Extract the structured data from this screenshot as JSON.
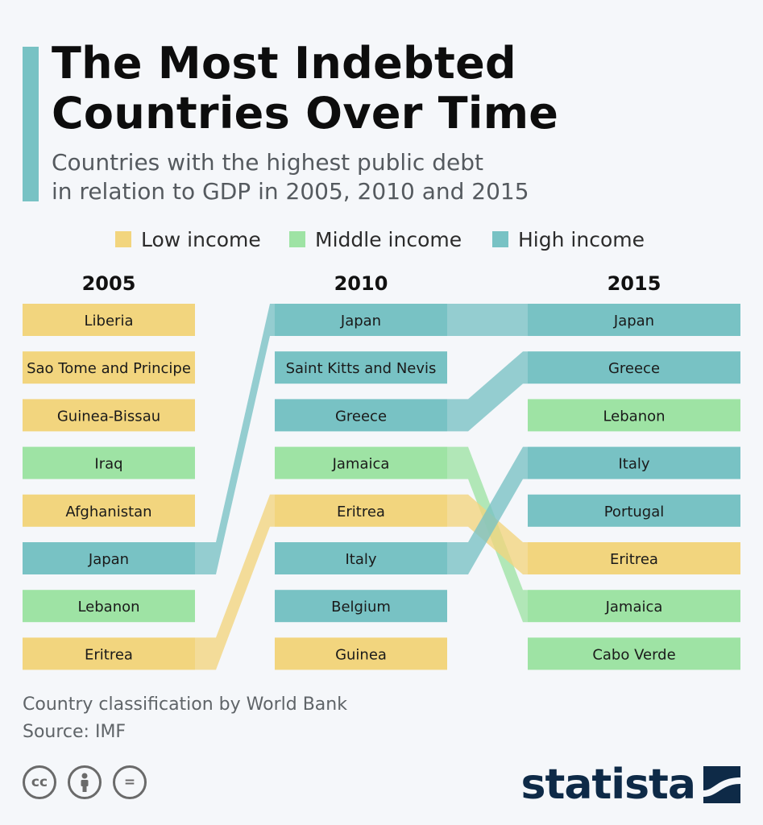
{
  "header": {
    "title_line1": "The Most Indebted",
    "title_line2": "Countries Over Time",
    "subtitle_line1": "Countries with the highest public debt",
    "subtitle_line2": "in relation to GDP in 2005, 2010 and 2015"
  },
  "legend": [
    {
      "key": "low",
      "label": "Low income",
      "color": "#f2d57e"
    },
    {
      "key": "middle",
      "label": "Middle income",
      "color": "#9ee3a4"
    },
    {
      "key": "high",
      "label": "High income",
      "color": "#78c2c4"
    }
  ],
  "chart_data": {
    "type": "table",
    "columns": [
      {
        "year": "2005",
        "countries": [
          {
            "name": "Liberia",
            "income": "low"
          },
          {
            "name": "Sao Tome and Principe",
            "income": "low"
          },
          {
            "name": "Guinea-Bissau",
            "income": "low"
          },
          {
            "name": "Iraq",
            "income": "middle"
          },
          {
            "name": "Afghanistan",
            "income": "low"
          },
          {
            "name": "Japan",
            "income": "high"
          },
          {
            "name": "Lebanon",
            "income": "middle"
          },
          {
            "name": "Eritrea",
            "income": "low"
          }
        ]
      },
      {
        "year": "2010",
        "countries": [
          {
            "name": "Japan",
            "income": "high"
          },
          {
            "name": "Saint Kitts and Nevis",
            "income": "high"
          },
          {
            "name": "Greece",
            "income": "high"
          },
          {
            "name": "Jamaica",
            "income": "middle"
          },
          {
            "name": "Eritrea",
            "income": "low"
          },
          {
            "name": "Italy",
            "income": "high"
          },
          {
            "name": "Belgium",
            "income": "high"
          },
          {
            "name": "Guinea",
            "income": "low"
          }
        ]
      },
      {
        "year": "2015",
        "countries": [
          {
            "name": "Japan",
            "income": "high"
          },
          {
            "name": "Greece",
            "income": "high"
          },
          {
            "name": "Lebanon",
            "income": "middle"
          },
          {
            "name": "Italy",
            "income": "high"
          },
          {
            "name": "Portugal",
            "income": "high"
          },
          {
            "name": "Eritrea",
            "income": "low"
          },
          {
            "name": "Jamaica",
            "income": "middle"
          },
          {
            "name": "Cabo Verde",
            "income": "middle"
          }
        ]
      }
    ],
    "links": [
      {
        "country": "Japan",
        "from": [
          0,
          5
        ],
        "to": [
          1,
          0
        ],
        "income": "high"
      },
      {
        "country": "Eritrea",
        "from": [
          0,
          7
        ],
        "to": [
          1,
          4
        ],
        "income": "low"
      },
      {
        "country": "Japan",
        "from": [
          1,
          0
        ],
        "to": [
          2,
          0
        ],
        "income": "high"
      },
      {
        "country": "Greece",
        "from": [
          1,
          2
        ],
        "to": [
          2,
          1
        ],
        "income": "high"
      },
      {
        "country": "Jamaica",
        "from": [
          1,
          3
        ],
        "to": [
          2,
          6
        ],
        "income": "middle"
      },
      {
        "country": "Eritrea",
        "from": [
          1,
          4
        ],
        "to": [
          2,
          5
        ],
        "income": "low"
      },
      {
        "country": "Italy",
        "from": [
          1,
          5
        ],
        "to": [
          2,
          3
        ],
        "income": "high"
      }
    ]
  },
  "footer": {
    "note": "Country classification by World Bank",
    "source": "Source: IMF",
    "license_icons": [
      "cc-icon",
      "by-attribution-icon",
      "nd-equals-icon"
    ],
    "cc_label": "cc",
    "nd_label": "=",
    "logo_text": "statista"
  }
}
